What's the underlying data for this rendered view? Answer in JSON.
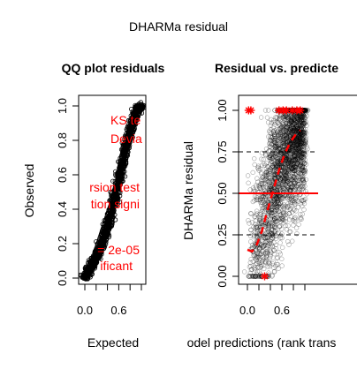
{
  "figure": {
    "title": "DHARMa residual"
  },
  "chart_data": [
    {
      "type": "scatter",
      "title": "QQ plot residuals",
      "xlabel": "Expected",
      "ylabel": "Observed",
      "xlim": [
        0,
        1
      ],
      "ylim": [
        0,
        1
      ],
      "x_ticks": [
        "0.0",
        "0.6"
      ],
      "y_ticks": [
        "0.0",
        "0.2",
        "0.4",
        "0.6",
        "0.8",
        "1.0"
      ],
      "reference_line": [
        [
          0,
          0
        ],
        [
          1,
          1
        ]
      ],
      "qq_curve": [
        [
          0.0,
          0.0
        ],
        [
          0.05,
          0.03
        ],
        [
          0.1,
          0.06
        ],
        [
          0.18,
          0.11
        ],
        [
          0.25,
          0.16
        ],
        [
          0.32,
          0.22
        ],
        [
          0.4,
          0.3
        ],
        [
          0.48,
          0.4
        ],
        [
          0.55,
          0.5
        ],
        [
          0.62,
          0.6
        ],
        [
          0.7,
          0.72
        ],
        [
          0.78,
          0.82
        ],
        [
          0.86,
          0.92
        ],
        [
          0.93,
          0.98
        ],
        [
          1.0,
          1.0
        ]
      ],
      "annotations": [
        "KS te",
        "Devia",
        "rsion test",
        "tion signi",
        "= 2e-05",
        "ificant"
      ],
      "colors": {
        "points": "#000000",
        "annotation": "#ff0000"
      }
    },
    {
      "type": "scatter",
      "title": "Residual vs. predicte",
      "xlabel": "odel predictions (rank trans",
      "ylabel": "DHARMa residual",
      "xlim": [
        0,
        1
      ],
      "ylim": [
        0,
        1
      ],
      "x_ticks": [
        "0.0",
        "0.6"
      ],
      "y_ticks": [
        "0.00",
        "0.25",
        "0.50",
        "0.75",
        "1.00"
      ],
      "reference_lines": [
        0.25,
        0.5,
        0.75
      ],
      "quantile_curve": [
        [
          0.0,
          0.16
        ],
        [
          0.08,
          0.15
        ],
        [
          0.15,
          0.18
        ],
        [
          0.25,
          0.27
        ],
        [
          0.35,
          0.4
        ],
        [
          0.45,
          0.52
        ],
        [
          0.55,
          0.64
        ],
        [
          0.65,
          0.74
        ],
        [
          0.75,
          0.81
        ],
        [
          0.85,
          0.86
        ],
        [
          0.92,
          0.88
        ]
      ],
      "outliers": [
        [
          0.02,
          1.0
        ],
        [
          0.06,
          1.0
        ],
        [
          0.55,
          1.0
        ],
        [
          0.62,
          1.0
        ],
        [
          0.68,
          1.0
        ],
        [
          0.78,
          1.0
        ],
        [
          0.86,
          1.0
        ],
        [
          0.92,
          1.0
        ],
        [
          0.3,
          0.0
        ]
      ],
      "colors": {
        "points": "#000000",
        "median_line": "#ff0000",
        "outliers": "#ff0000"
      }
    }
  ]
}
